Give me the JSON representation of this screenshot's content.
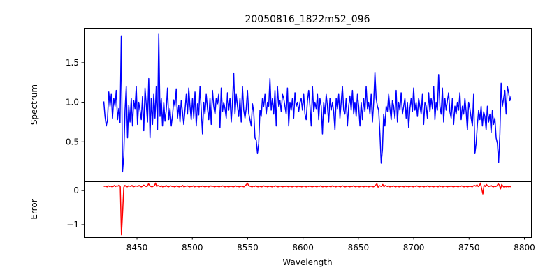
{
  "chart_data": [
    {
      "type": "line",
      "panel": "spectrum",
      "title": "20050816_1822m52_096",
      "xlabel": "",
      "ylabel": "Spectrum",
      "xlim": [
        8402,
        8806
      ],
      "ylim": [
        0.0,
        1.94
      ],
      "xticks": [],
      "yticks": [
        0.5,
        1.0,
        1.5
      ],
      "ytick_labels": [
        "0.5",
        "1.0",
        "1.5"
      ],
      "grid": false,
      "color": "#0000ff",
      "x_start": 8420,
      "x_end": 8788,
      "values": [
        1.01,
        0.82,
        0.7,
        0.78,
        1.13,
        0.95,
        1.1,
        0.8,
        1.05,
        0.95,
        1.15,
        0.78,
        0.92,
        0.74,
        1.84,
        0.12,
        0.32,
        0.9,
        1.2,
        0.55,
        0.96,
        0.75,
        1.05,
        0.7,
        1.02,
        0.92,
        1.2,
        0.72,
        1.0,
        0.9,
        0.78,
        1.07,
        0.64,
        1.18,
        0.97,
        0.75,
        1.3,
        0.55,
        1.05,
        0.72,
        1.1,
        0.8,
        1.2,
        0.65,
        1.86,
        0.82,
        1.05,
        0.7,
        1.0,
        0.76,
        0.9,
        1.18,
        0.78,
        0.92,
        0.7,
        0.83,
        1.03,
        0.95,
        1.17,
        0.8,
        0.96,
        0.75,
        1.02,
        0.88,
        0.72,
        0.9,
        1.1,
        0.85,
        1.18,
        0.95,
        0.78,
        1.05,
        0.8,
        1.13,
        0.7,
        0.98,
        0.84,
        1.2,
        0.9,
        0.6,
        1.0,
        0.85,
        1.1,
        0.92,
        0.78,
        1.05,
        0.72,
        1.15,
        0.95,
        0.85,
        1.05,
        0.98,
        1.1,
        0.68,
        1.18,
        0.88,
        1.0,
        0.92,
        0.8,
        1.12,
        0.9,
        1.05,
        0.75,
        1.0,
        1.37,
        0.85,
        1.1,
        0.95,
        0.82,
        1.05,
        0.75,
        1.2,
        0.9,
        0.8,
        0.92,
        1.15,
        0.86,
        0.78,
        0.7,
        0.98,
        0.88,
        0.55,
        0.52,
        0.35,
        0.48,
        0.9,
        0.82,
        1.05,
        0.95,
        1.1,
        0.85,
        1.0,
        0.95,
        1.3,
        0.9,
        1.05,
        0.85,
        1.15,
        0.7,
        1.2,
        0.95,
        1.02,
        0.88,
        1.1,
        1.05,
        0.95,
        0.85,
        1.18,
        0.7,
        1.0,
        0.9,
        1.05,
        0.8,
        1.12,
        0.95,
        1.0,
        0.88,
        1.0,
        1.05,
        0.9,
        1.1,
        0.85,
        0.78,
        1.02,
        1.15,
        0.95,
        0.7,
        1.2,
        0.88,
        1.0,
        0.92,
        1.1,
        0.78,
        1.05,
        0.95,
        0.6,
        1.0,
        0.85,
        1.1,
        0.95,
        0.75,
        1.05,
        0.9,
        1.0,
        0.88,
        0.65,
        1.05,
        0.92,
        1.1,
        0.8,
        1.0,
        1.2,
        0.9,
        0.85,
        1.05,
        0.7,
        0.95,
        1.08,
        0.9,
        1.15,
        0.85,
        1.0,
        0.82,
        1.1,
        0.95,
        0.7,
        1.0,
        0.78,
        1.05,
        0.88,
        1.2,
        0.92,
        1.0,
        0.85,
        1.1,
        0.75,
        1.0,
        1.38,
        1.05,
        0.95,
        0.9,
        0.6,
        0.23,
        0.4,
        0.85,
        0.7,
        0.95,
        0.88,
        1.1,
        0.92,
        0.78,
        1.02,
        0.95,
        0.8,
        1.15,
        0.75,
        1.0,
        0.9,
        1.12,
        0.85,
        0.95,
        1.05,
        0.8,
        1.0,
        0.68,
        0.92,
        1.05,
        0.88,
        1.18,
        0.9,
        1.0,
        0.82,
        1.05,
        0.95,
        0.85,
        1.1,
        0.72,
        1.0,
        0.95,
        0.8,
        1.12,
        0.88,
        1.05,
        0.92,
        1.2,
        0.78,
        1.0,
        0.9,
        1.35,
        0.95,
        0.85,
        1.18,
        0.75,
        1.05,
        0.9,
        1.02,
        1.12,
        0.88,
        0.8,
        1.05,
        0.72,
        0.95,
        0.85,
        1.0,
        0.9,
        1.12,
        0.78,
        0.95,
        0.85,
        1.05,
        0.88,
        0.65,
        1.0,
        0.92,
        0.8,
        0.7,
        1.1,
        0.35,
        0.48,
        0.72,
        0.9,
        0.78,
        0.95,
        0.7,
        0.88,
        0.82,
        0.65,
        0.95,
        0.75,
        0.85,
        0.62,
        0.9,
        0.72,
        0.8,
        0.55,
        0.48,
        0.24,
        0.6,
        1.24,
        0.95,
        1.05,
        1.15,
        0.85,
        1.2,
        1.12,
        1.02,
        1.08
      ]
    },
    {
      "type": "line",
      "panel": "error",
      "title": "",
      "xlabel": "Wavelength",
      "ylabel": "Error",
      "xlim": [
        8402,
        8806
      ],
      "ylim": [
        -1.37,
        0.27
      ],
      "xticks": [
        8450,
        8500,
        8550,
        8600,
        8650,
        8700,
        8750,
        8800
      ],
      "xtick_labels": [
        "8450",
        "8500",
        "8550",
        "8600",
        "8650",
        "8700",
        "8750",
        "8800"
      ],
      "yticks": [
        -1,
        0
      ],
      "ytick_labels": [
        "−1",
        "0"
      ],
      "grid": false,
      "color": "#ff0000",
      "x_start": 8420,
      "x_end": 8788,
      "values": [
        0.12,
        0.13,
        0.12,
        0.11,
        0.14,
        0.12,
        0.13,
        0.11,
        0.12,
        0.15,
        0.12,
        0.14,
        0.13,
        0.16,
        0.12,
        -1.3,
        -0.65,
        0.1,
        0.15,
        0.12,
        0.11,
        0.14,
        0.13,
        0.12,
        0.15,
        0.11,
        0.12,
        0.14,
        0.13,
        0.12,
        0.15,
        0.12,
        0.11,
        0.13,
        0.16,
        0.14,
        0.12,
        0.13,
        0.2,
        0.15,
        0.12,
        0.11,
        0.13,
        0.14,
        0.22,
        0.12,
        0.15,
        0.13,
        0.12,
        0.14,
        0.11,
        0.13,
        0.12,
        0.15,
        0.12,
        0.11,
        0.13,
        0.14,
        0.12,
        0.13,
        0.11,
        0.12,
        0.14,
        0.12,
        0.11,
        0.13,
        0.12,
        0.15,
        0.11,
        0.12,
        0.13,
        0.14,
        0.12,
        0.11,
        0.13,
        0.12,
        0.14,
        0.11,
        0.12,
        0.13,
        0.12,
        0.11,
        0.13,
        0.12,
        0.14,
        0.12,
        0.11,
        0.12,
        0.13,
        0.11,
        0.12,
        0.14,
        0.12,
        0.13,
        0.11,
        0.12,
        0.13,
        0.12,
        0.11,
        0.13,
        0.12,
        0.14,
        0.12,
        0.11,
        0.13,
        0.12,
        0.11,
        0.12,
        0.13,
        0.12,
        0.11,
        0.12,
        0.14,
        0.12,
        0.13,
        0.11,
        0.12,
        0.13,
        0.12,
        0.11,
        0.14,
        0.17,
        0.22,
        0.15,
        0.13,
        0.12,
        0.11,
        0.13,
        0.12,
        0.14,
        0.12,
        0.11,
        0.13,
        0.12,
        0.11,
        0.12,
        0.14,
        0.12,
        0.13,
        0.11,
        0.12,
        0.13,
        0.12,
        0.11,
        0.13,
        0.12,
        0.14,
        0.12,
        0.11,
        0.12,
        0.13,
        0.12,
        0.11,
        0.13,
        0.12,
        0.14,
        0.12,
        0.11,
        0.13,
        0.12,
        0.11,
        0.12,
        0.13,
        0.12,
        0.11,
        0.14,
        0.12,
        0.13,
        0.11,
        0.12,
        0.13,
        0.12,
        0.11,
        0.13,
        0.12,
        0.14,
        0.12,
        0.11,
        0.12,
        0.13,
        0.12,
        0.11,
        0.13,
        0.12,
        0.14,
        0.12,
        0.11,
        0.13,
        0.12,
        0.11,
        0.12,
        0.13,
        0.12,
        0.11,
        0.14,
        0.12,
        0.13,
        0.11,
        0.12,
        0.13,
        0.12,
        0.11,
        0.13,
        0.14,
        0.12,
        0.11,
        0.12,
        0.13,
        0.12,
        0.11,
        0.13,
        0.12,
        0.14,
        0.12,
        0.11,
        0.13,
        0.12,
        0.11,
        0.12,
        0.13,
        0.12,
        0.11,
        0.14,
        0.12,
        0.13,
        0.11,
        0.12,
        0.13,
        0.12,
        0.11,
        0.13,
        0.16,
        0.2,
        0.1,
        0.15,
        0.13,
        0.12,
        0.18,
        0.11,
        0.15,
        0.13,
        0.12,
        0.14,
        0.11,
        0.13,
        0.12,
        0.14,
        0.12,
        0.11,
        0.13,
        0.12,
        0.11,
        0.12,
        0.13,
        0.12,
        0.11,
        0.14,
        0.12,
        0.13,
        0.11,
        0.12,
        0.13,
        0.12,
        0.11,
        0.13,
        0.12,
        0.14,
        0.12,
        0.11,
        0.12,
        0.13,
        0.12,
        0.11,
        0.13,
        0.12,
        0.14,
        0.12,
        0.11,
        0.13,
        0.12,
        0.11,
        0.12,
        0.13,
        0.12,
        0.11,
        0.14,
        0.12,
        0.13,
        0.11,
        0.12,
        0.13,
        0.12,
        0.11,
        0.13,
        0.12,
        0.14,
        0.12,
        0.11,
        0.12,
        0.13,
        0.12,
        0.11,
        0.13,
        0.12,
        0.14,
        0.12,
        0.11,
        0.13,
        0.12,
        0.11,
        0.12,
        0.13,
        0.12,
        0.11,
        0.14,
        0.15,
        0.13,
        0.17,
        0.12,
        0.14,
        0.22,
        0.05,
        -0.1,
        0.16,
        0.12,
        0.18,
        0.14,
        0.12,
        0.13,
        0.15,
        0.12,
        0.11,
        0.13,
        0.12,
        0.14,
        0.2,
        0.16,
        0.05,
        0.18,
        0.13,
        0.1,
        0.12,
        0.11,
        0.12,
        0.11,
        0.12,
        0.11
      ]
    }
  ]
}
